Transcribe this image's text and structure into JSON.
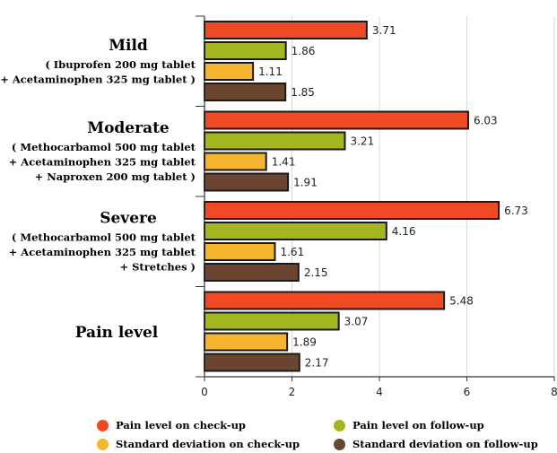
{
  "chart_data": {
    "type": "bar",
    "orientation": "horizontal",
    "categories": [
      {
        "title": "Mild",
        "lines": [
          "( Ibuprofen 200 mg tablet",
          "+ Acetaminophen 325 mg tablet )"
        ]
      },
      {
        "title": "Moderate",
        "lines": [
          "( Methocarbamol 500 mg tablet",
          "+ Acetaminophen 325 mg tablet",
          "+ Naproxen 200 mg tablet )"
        ]
      },
      {
        "title": "Severe",
        "lines": [
          "( Methocarbamol 500 mg tablet",
          "+ Acetaminophen 325 mg tablet",
          "+ Stretches )"
        ]
      },
      {
        "title": "Pain level",
        "lines": []
      }
    ],
    "series": [
      {
        "name": "Pain level on check-up",
        "color": "#f04a25",
        "values": [
          3.71,
          6.03,
          6.73,
          5.48
        ]
      },
      {
        "name": "Pain level on follow-up",
        "color": "#a3b51f",
        "values": [
          1.86,
          3.21,
          4.16,
          3.07
        ]
      },
      {
        "name": "Standard deviation on check-up",
        "color": "#f5b52e",
        "values": [
          1.11,
          1.41,
          1.61,
          1.89
        ]
      },
      {
        "name": "Standard deviation on follow-up",
        "color": "#6b4530",
        "values": [
          1.85,
          1.91,
          2.15,
          2.17
        ]
      }
    ],
    "value_labels": [
      [
        "3.71",
        "1.86",
        "1.11",
        "1.85"
      ],
      [
        "6.03",
        "3.21",
        "1.41",
        "1.91"
      ],
      [
        "6.73",
        "4.16",
        "1.61",
        "2.15"
      ],
      [
        "5.48",
        "3.07",
        "1.89",
        "2.17"
      ]
    ],
    "xlim": [
      0,
      8
    ],
    "xticks": [
      0,
      2,
      4,
      6,
      8
    ],
    "xtick_labels": [
      "0",
      "2",
      "4",
      "6",
      "8"
    ],
    "grid": true,
    "legend_position": "bottom"
  }
}
